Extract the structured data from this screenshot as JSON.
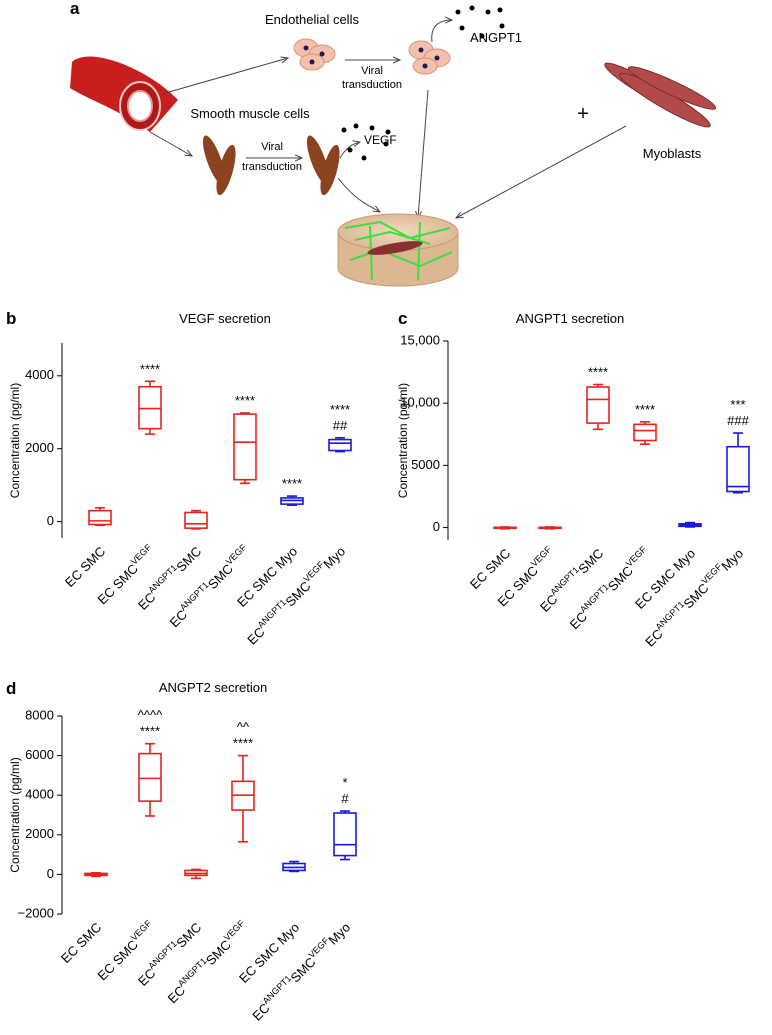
{
  "diagram": {
    "panel_label": "a",
    "endothelial": "Endothelial cells",
    "angpt1": "ANGPT1",
    "viral_1": [
      "Viral",
      "transduction"
    ],
    "smooth_muscle": "Smooth muscle cells",
    "vegf": "VEGF",
    "viral_2": [
      "Viral",
      "transduction"
    ],
    "plus": "+",
    "myoblasts": "Myoblasts"
  },
  "chart_data": [
    {
      "type": "box",
      "panel_label": "b",
      "title": "VEGF secretion",
      "y_label": "Concentration (pg/ml)",
      "categories": [
        [
          {
            "text": "EC SMC"
          }
        ],
        [
          {
            "text": "EC SMC"
          },
          {
            "text": "VEGF",
            "sup": true
          }
        ],
        [
          {
            "text": "EC"
          },
          {
            "text": "ANGPT1",
            "sup": true
          },
          {
            "text": "SMC"
          }
        ],
        [
          {
            "text": "EC"
          },
          {
            "text": "ANGPT1",
            "sup": true
          },
          {
            "text": "SMC"
          },
          {
            "text": "VEGF",
            "sup": true
          }
        ],
        [
          {
            "text": "EC SMC Myo"
          }
        ],
        [
          {
            "text": "EC"
          },
          {
            "text": "ANGPT1",
            "sup": true
          },
          {
            "text": "SMC"
          },
          {
            "text": "VEGF",
            "sup": true
          },
          {
            "text": "Myo"
          }
        ]
      ],
      "boxes": [
        {
          "min": -100,
          "q1": -80,
          "median": 20,
          "q3": 300,
          "max": 380,
          "color": "#e8231f",
          "annotations": []
        },
        {
          "min": 2400,
          "q1": 2550,
          "median": 3100,
          "q3": 3700,
          "max": 3850,
          "color": "#e8231f",
          "annotations": [
            "****"
          ]
        },
        {
          "min": -200,
          "q1": -180,
          "median": -60,
          "q3": 250,
          "max": 300,
          "color": "#e8231f",
          "annotations": []
        },
        {
          "min": 1050,
          "q1": 1150,
          "median": 2180,
          "q3": 2950,
          "max": 2980,
          "color": "#e8231f",
          "annotations": [
            "****"
          ]
        },
        {
          "min": 450,
          "q1": 480,
          "median": 580,
          "q3": 650,
          "max": 700,
          "color": "#1a1adc",
          "annotations": [
            "****"
          ]
        },
        {
          "min": 1920,
          "q1": 1950,
          "median": 2150,
          "q3": 2250,
          "max": 2300,
          "color": "#1a1adc",
          "annotations": [
            "****",
            "##"
          ]
        }
      ],
      "ylim": [
        -450,
        4900
      ],
      "yticks": [
        0,
        2000,
        4000
      ]
    },
    {
      "type": "box",
      "panel_label": "c",
      "title": "ANGPT1 secretion",
      "y_label": "Concentration (pg/ml)",
      "categories": [
        [
          {
            "text": "EC SMC"
          }
        ],
        [
          {
            "text": "EC SMC"
          },
          {
            "text": "VEGF",
            "sup": true
          }
        ],
        [
          {
            "text": "EC"
          },
          {
            "text": "ANGPT1",
            "sup": true
          },
          {
            "text": "SMC"
          }
        ],
        [
          {
            "text": "EC"
          },
          {
            "text": "ANGPT1",
            "sup": true
          },
          {
            "text": "SMC"
          },
          {
            "text": "VEGF",
            "sup": true
          }
        ],
        [
          {
            "text": "EC SMC Myo"
          }
        ],
        [
          {
            "text": "EC"
          },
          {
            "text": "ANGPT1",
            "sup": true
          },
          {
            "text": "SMC"
          },
          {
            "text": "VEGF",
            "sup": true
          },
          {
            "text": "Myo"
          }
        ]
      ],
      "boxes": [
        {
          "min": -100,
          "q1": -60,
          "median": -20,
          "q3": 20,
          "max": 50,
          "color": "#e8231f",
          "annotations": []
        },
        {
          "min": -100,
          "q1": -60,
          "median": -20,
          "q3": 20,
          "max": 50,
          "color": "#e8231f",
          "annotations": []
        },
        {
          "min": 7900,
          "q1": 8400,
          "median": 10300,
          "q3": 11300,
          "max": 11500,
          "color": "#e8231f",
          "annotations": [
            "****"
          ]
        },
        {
          "min": 6700,
          "q1": 7000,
          "median": 7800,
          "q3": 8300,
          "max": 8500,
          "color": "#e8231f",
          "annotations": [
            "****"
          ]
        },
        {
          "min": 50,
          "q1": 100,
          "median": 200,
          "q3": 300,
          "max": 400,
          "color": "#1a1adc",
          "annotations": []
        },
        {
          "min": 2800,
          "q1": 2900,
          "median": 3300,
          "q3": 6500,
          "max": 7600,
          "color": "#1a1adc",
          "annotations": [
            "***",
            "###"
          ]
        }
      ],
      "ylim": [
        -1000,
        15000
      ],
      "yticks": [
        0,
        5000,
        {
          "value": 10000,
          "label": "10,000"
        },
        {
          "value": 15000,
          "label": "15,000"
        }
      ]
    },
    {
      "type": "box",
      "panel_label": "d",
      "title": "ANGPT2 secretion",
      "y_label": "Concentration (pg/ml)",
      "categories": [
        [
          {
            "text": "EC SMC"
          }
        ],
        [
          {
            "text": "EC SMC"
          },
          {
            "text": "VEGF",
            "sup": true
          }
        ],
        [
          {
            "text": "EC"
          },
          {
            "text": "ANGPT1",
            "sup": true
          },
          {
            "text": "SMC"
          }
        ],
        [
          {
            "text": "EC"
          },
          {
            "text": "ANGPT1",
            "sup": true
          },
          {
            "text": "SMC"
          },
          {
            "text": "VEGF",
            "sup": true
          }
        ],
        [
          {
            "text": "EC SMC Myo"
          }
        ],
        [
          {
            "text": "EC"
          },
          {
            "text": "ANGPT1",
            "sup": true
          },
          {
            "text": "SMC"
          },
          {
            "text": "VEGF",
            "sup": true
          },
          {
            "text": "Myo"
          }
        ]
      ],
      "boxes": [
        {
          "min": -100,
          "q1": -50,
          "median": 0,
          "q3": 50,
          "max": 80,
          "color": "#e8231f",
          "annotations": []
        },
        {
          "min": 2950,
          "q1": 3700,
          "median": 4850,
          "q3": 6100,
          "max": 6600,
          "color": "#e8231f",
          "annotations": [
            "^^^^",
            "****"
          ]
        },
        {
          "min": -200,
          "q1": -50,
          "median": 50,
          "q3": 200,
          "max": 250,
          "color": "#e8231f",
          "annotations": []
        },
        {
          "min": 1650,
          "q1": 3250,
          "median": 4000,
          "q3": 4700,
          "max": 6000,
          "color": "#e8231f",
          "annotations": [
            "^^",
            "****"
          ]
        },
        {
          "min": 150,
          "q1": 200,
          "median": 350,
          "q3": 550,
          "max": 650,
          "color": "#1a1adc",
          "annotations": []
        },
        {
          "min": 750,
          "q1": 950,
          "median": 1500,
          "q3": 3100,
          "max": 3200,
          "color": "#1a1adc",
          "annotations": [
            "*",
            "#"
          ]
        }
      ],
      "ylim": [
        -2000,
        8000
      ],
      "yticks": [
        {
          "value": -2000,
          "label": "−2000"
        },
        0,
        2000,
        4000,
        6000,
        8000
      ]
    }
  ]
}
